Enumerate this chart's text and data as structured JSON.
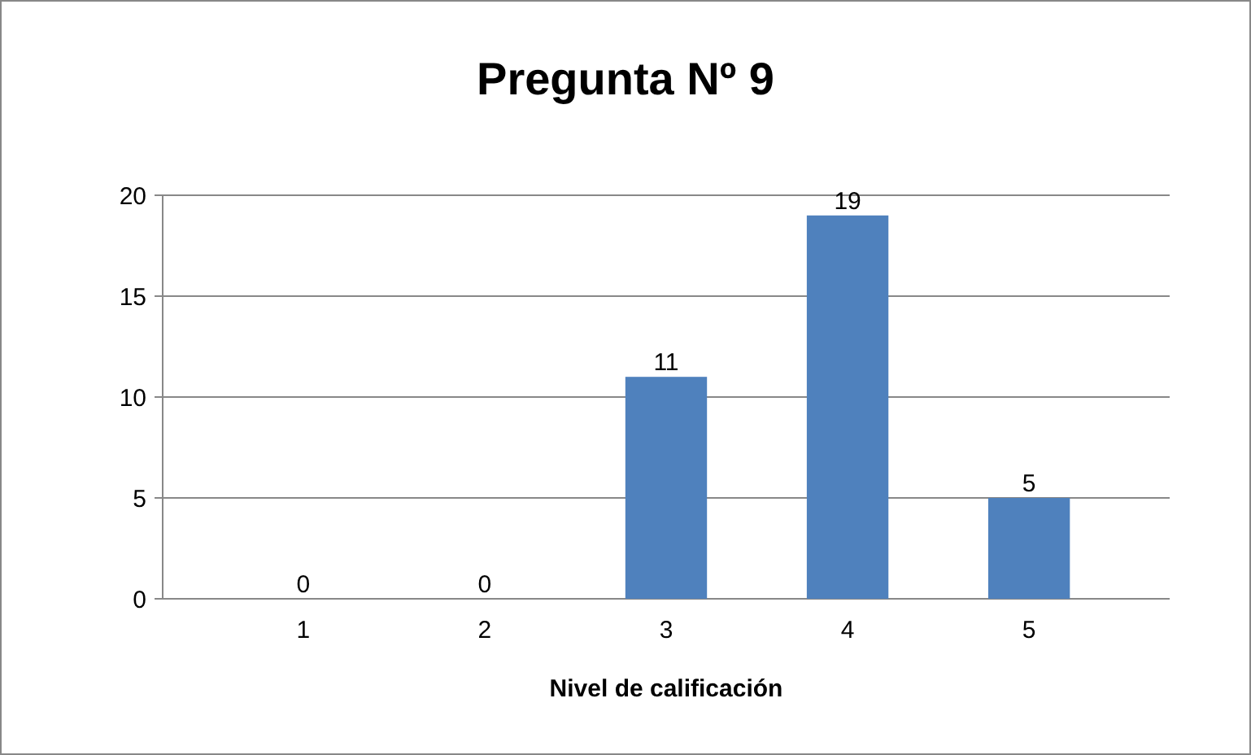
{
  "chart_data": {
    "type": "bar",
    "title": "Pregunta Nº 9",
    "xlabel": "Nivel de calificación",
    "categories": [
      "1",
      "2",
      "3",
      "4",
      "5"
    ],
    "values": [
      0,
      0,
      11,
      19,
      5
    ],
    "color": "#4f81bd",
    "ylim": [
      0,
      20
    ],
    "yticks": [
      0,
      5,
      10,
      15,
      20
    ],
    "grid": "y",
    "data_labels": true
  }
}
